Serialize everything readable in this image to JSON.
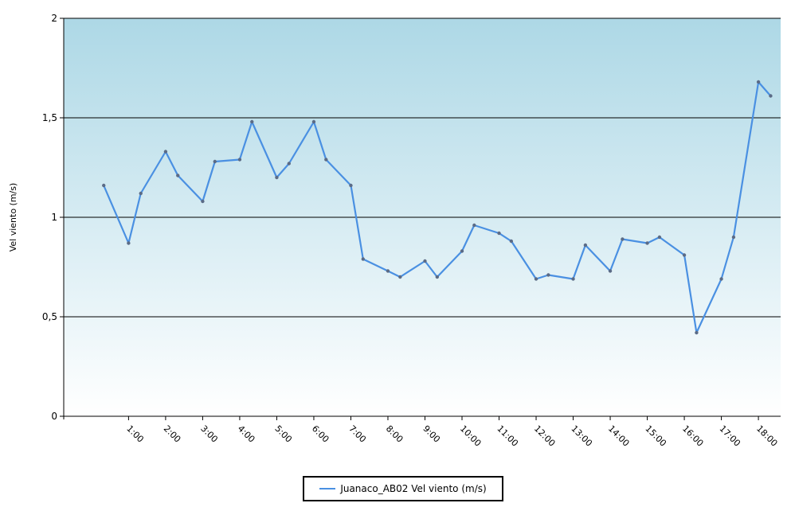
{
  "chart_data": {
    "type": "line",
    "xlabel": "",
    "ylabel": "Vel viento (m/s)",
    "ylim": [
      0,
      2
    ],
    "yticks": [
      0,
      0.5,
      1,
      1.5,
      2
    ],
    "ytick_labels": [
      "0",
      "0,5",
      "1",
      "1,5",
      "2"
    ],
    "xlim": [
      -0.75,
      18.6
    ],
    "xticks": [
      1,
      2,
      3,
      4,
      5,
      6,
      7,
      8,
      9,
      10,
      11,
      12,
      13,
      14,
      15,
      16,
      17,
      18
    ],
    "xtick_labels": [
      "1:00",
      "2:00",
      "3:00",
      "4:00",
      "5:00",
      "6:00",
      "7:00",
      "8:00",
      "9:00",
      "10:00",
      "11:00",
      "12:00",
      "13:00",
      "14:00",
      "15:00",
      "16:00",
      "17:00",
      "18:00"
    ],
    "grid": true,
    "legend_position": "bottom-center",
    "series": [
      {
        "name": "Juanaco_AB02 Vel viento (m/s)",
        "color": "#4a90e2",
        "x": [
          0.33,
          1.0,
          1.33,
          2.0,
          2.33,
          3.0,
          3.33,
          4.0,
          4.33,
          5.0,
          5.33,
          6.0,
          6.33,
          7.0,
          7.33,
          8.0,
          8.33,
          9.0,
          9.33,
          10.0,
          10.33,
          11.0,
          11.33,
          12.0,
          12.33,
          13.0,
          13.33,
          14.0,
          14.33,
          15.0,
          15.33,
          16.0,
          16.33,
          17.0,
          17.33,
          18.0,
          18.33
        ],
        "y": [
          1.16,
          0.87,
          1.12,
          1.33,
          1.21,
          1.08,
          1.28,
          1.29,
          1.48,
          1.2,
          1.27,
          1.48,
          1.29,
          1.16,
          0.79,
          0.73,
          0.7,
          0.78,
          0.7,
          0.83,
          0.96,
          0.92,
          0.88,
          0.69,
          0.71,
          0.69,
          0.86,
          0.73,
          0.89,
          0.87,
          0.9,
          0.81,
          0.42,
          0.69,
          0.9,
          1.68,
          1.61
        ]
      }
    ]
  }
}
